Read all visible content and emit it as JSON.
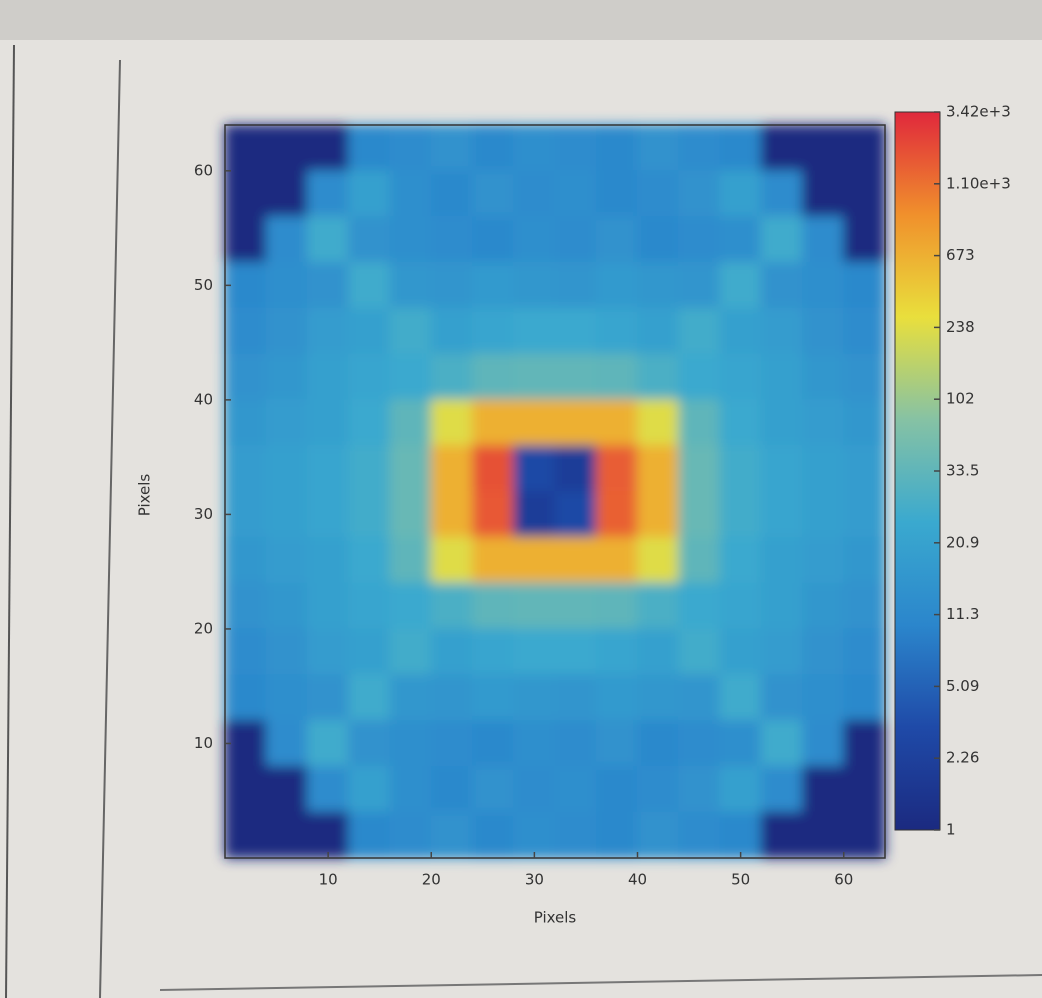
{
  "chart_data": {
    "type": "heatmap",
    "x_label": "Pixels",
    "y_label": "Pixels",
    "xlim": [
      0,
      64
    ],
    "ylim": [
      0,
      64
    ],
    "xticks": [
      10,
      20,
      30,
      40,
      50,
      60
    ],
    "yticks": [
      10,
      20,
      30,
      40,
      50,
      60
    ],
    "colorbar_ticks": [
      1,
      2.26,
      5.09,
      11.3,
      20.9,
      33.5,
      102,
      238,
      673,
      {
        "value": 1100,
        "label": "1.10e+3"
      },
      {
        "value": 3420,
        "label": "3.42e+3"
      }
    ],
    "colormap": [
      "#1b2a80",
      "#1f4aa8",
      "#2b86cc",
      "#3aa9cf",
      "#86c2a4",
      "#e9df3c",
      "#f0902c",
      "#e0283c"
    ],
    "z": [
      [
        1,
        1,
        1,
        11,
        12,
        14,
        11,
        13,
        12,
        11,
        14,
        12,
        11,
        1,
        1,
        1
      ],
      [
        1,
        1,
        12,
        20,
        13,
        11,
        14,
        12,
        13,
        11,
        12,
        14,
        20,
        12,
        1,
        1
      ],
      [
        1,
        12,
        25,
        14,
        13,
        12,
        11,
        13,
        12,
        14,
        11,
        12,
        13,
        25,
        12,
        1
      ],
      [
        11,
        13,
        14,
        25,
        16,
        15,
        17,
        16,
        15,
        17,
        16,
        15,
        25,
        14,
        13,
        11
      ],
      [
        12,
        14,
        18,
        20,
        26,
        20,
        22,
        24,
        24,
        22,
        20,
        26,
        20,
        18,
        14,
        12
      ],
      [
        14,
        16,
        20,
        22,
        24,
        28,
        33,
        35,
        35,
        33,
        28,
        24,
        22,
        20,
        16,
        14
      ],
      [
        16,
        18,
        20,
        24,
        33,
        238,
        673,
        673,
        673,
        673,
        238,
        33,
        24,
        20,
        18,
        16
      ],
      [
        18,
        20,
        22,
        26,
        40,
        673,
        1800,
        3,
        2,
        1500,
        673,
        40,
        26,
        22,
        20,
        18
      ],
      [
        18,
        20,
        22,
        26,
        40,
        673,
        1600,
        2,
        3,
        1400,
        673,
        40,
        26,
        22,
        20,
        18
      ],
      [
        16,
        18,
        20,
        24,
        33,
        238,
        673,
        673,
        673,
        673,
        238,
        33,
        24,
        20,
        18,
        16
      ],
      [
        14,
        16,
        20,
        22,
        24,
        28,
        33,
        35,
        35,
        33,
        28,
        24,
        22,
        20,
        16,
        14
      ],
      [
        12,
        14,
        18,
        20,
        26,
        20,
        22,
        24,
        24,
        22,
        20,
        26,
        20,
        18,
        14,
        12
      ],
      [
        11,
        13,
        14,
        25,
        16,
        15,
        17,
        16,
        15,
        17,
        16,
        15,
        25,
        14,
        13,
        11
      ],
      [
        1,
        12,
        25,
        14,
        13,
        12,
        11,
        13,
        12,
        14,
        11,
        12,
        13,
        25,
        12,
        1
      ],
      [
        1,
        1,
        12,
        20,
        13,
        11,
        14,
        12,
        13,
        11,
        12,
        14,
        20,
        12,
        1,
        1
      ],
      [
        1,
        1,
        1,
        11,
        12,
        14,
        11,
        13,
        12,
        11,
        14,
        12,
        11,
        1,
        1,
        1
      ]
    ]
  }
}
